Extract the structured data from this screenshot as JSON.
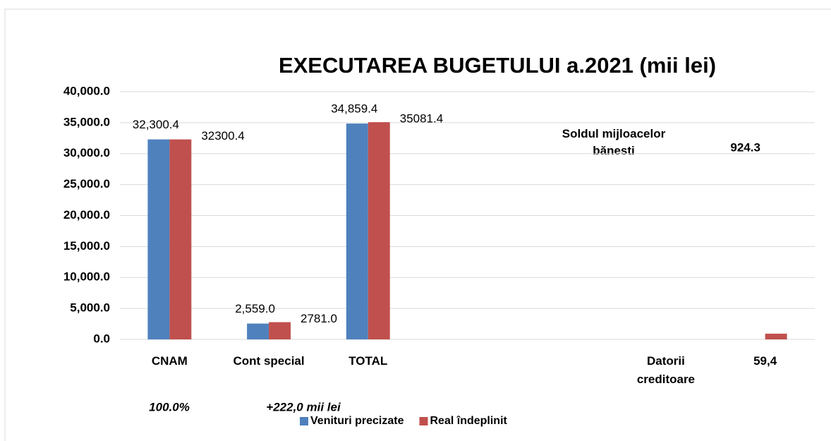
{
  "chart_data": {
    "type": "bar",
    "title": "EXECUTAREA BUGETULUI  a.2021 (mii lei)",
    "categories": [
      "CNAM",
      "Cont special",
      "TOTAL",
      null,
      null,
      "Datorii creditoare",
      "59,4"
    ],
    "series": [
      {
        "name": "Venituri precizate",
        "color": "#4f81bd",
        "values": [
          32300.4,
          2559.0,
          34859.4,
          null,
          null,
          null,
          null
        ],
        "value_labels": [
          "32,300.4",
          "2,559.0",
          "34,859.4",
          null,
          null,
          null,
          null
        ]
      },
      {
        "name": "Real îndeplinit",
        "color": "#c0504d",
        "values": [
          32300.4,
          2781.0,
          35081.4,
          null,
          null,
          null,
          924.3
        ],
        "value_labels": [
          "32300.4",
          "2781.0",
          "35081.4",
          null,
          null,
          null,
          "924.3"
        ]
      }
    ],
    "annotations": [
      "100.0%",
      "+222,0 mii lei",
      "Soldul mijloacelor bănesti"
    ],
    "ylim": [
      0,
      40000
    ],
    "yticks": [
      {
        "value": 0,
        "label": "0.0"
      },
      {
        "value": 5000,
        "label": "5,000.0"
      },
      {
        "value": 10000,
        "label": "10,000.0"
      },
      {
        "value": 15000,
        "label": "15,000.0"
      },
      {
        "value": 20000,
        "label": "20,000.0"
      },
      {
        "value": 25000,
        "label": "25,000.0"
      },
      {
        "value": 30000,
        "label": "30,000.0"
      },
      {
        "value": 35000,
        "label": "35,000.0"
      },
      {
        "value": 40000,
        "label": "40,000.0"
      }
    ],
    "grid": true,
    "legend": "bottom"
  }
}
